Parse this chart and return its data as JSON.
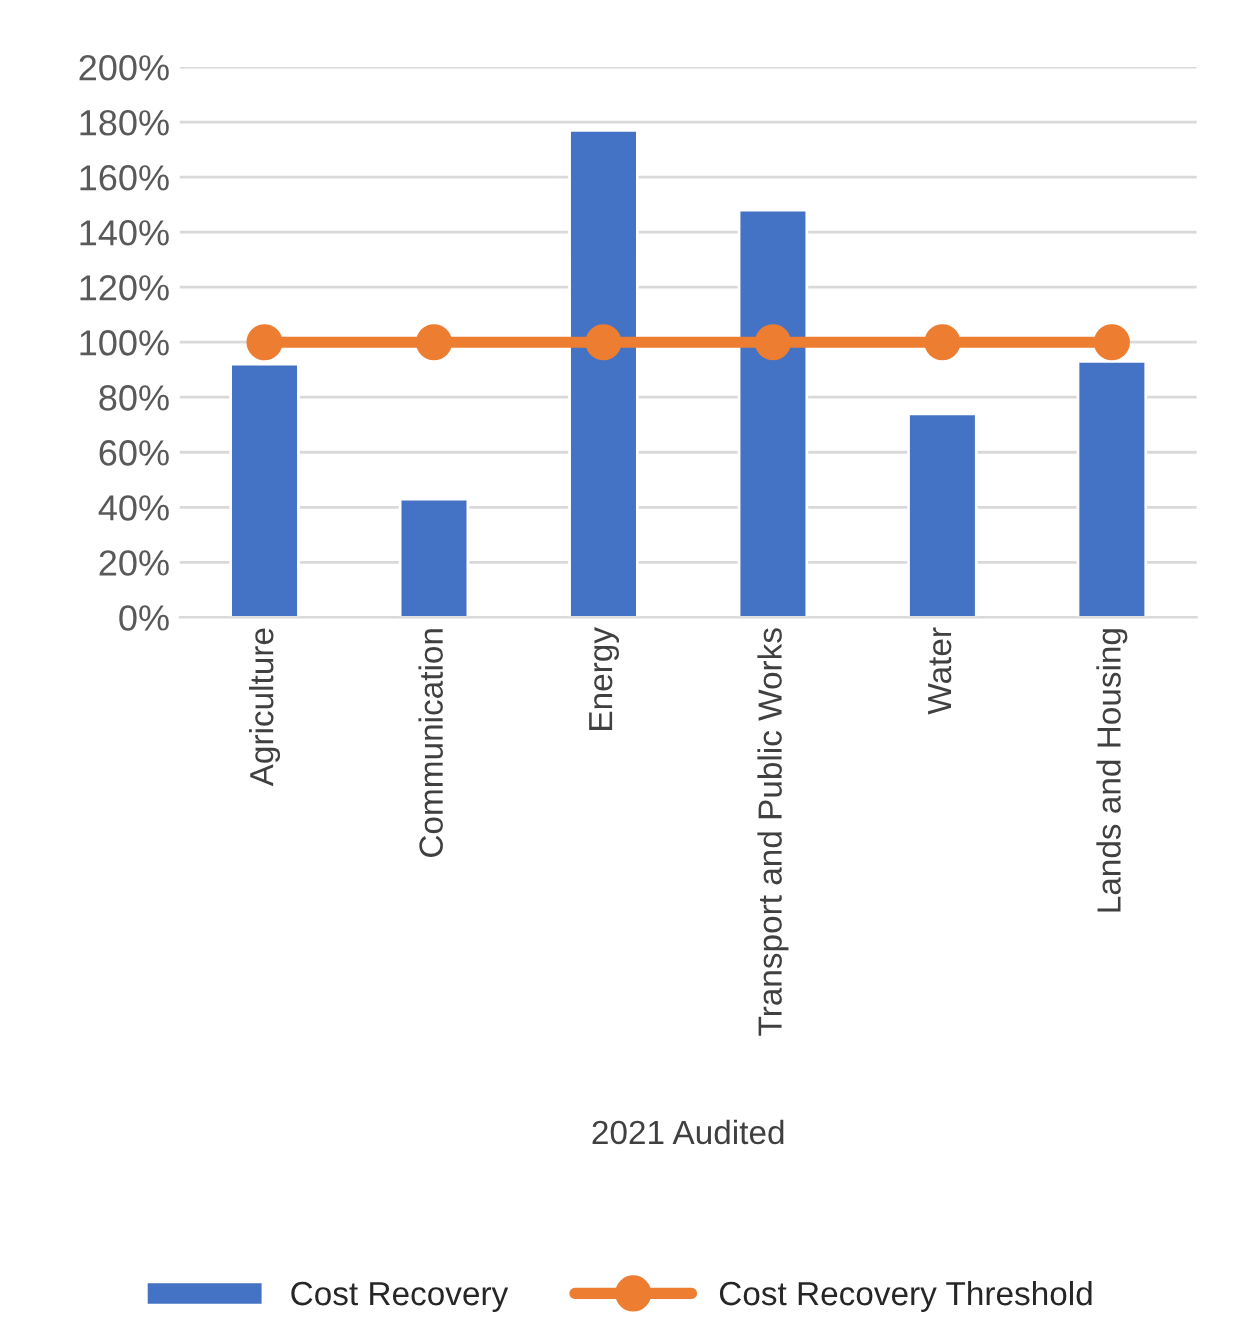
{
  "chart_data": {
    "type": "bar",
    "categories": [
      "Agriculture",
      "Communication",
      "Energy",
      "Transport and Public Works",
      "Water",
      "Lands and Housing"
    ],
    "xlabel": "2021 Audited",
    "series": [
      {
        "name": "Cost Recovery",
        "color": "#4472c4",
        "values": [
          92,
          43,
          177,
          148,
          74,
          93
        ]
      },
      {
        "name": "Cost Recovery Threshold",
        "color": "#ed7d31",
        "type": "line",
        "marker": "circle",
        "values": [
          100,
          100,
          100,
          100,
          100,
          100
        ]
      }
    ],
    "ylim": [
      0,
      200
    ],
    "yticks": [
      {
        "value": 0,
        "label": "0%"
      },
      {
        "value": 20,
        "label": "20%"
      },
      {
        "value": 40,
        "label": "40%"
      },
      {
        "value": 60,
        "label": "60%"
      },
      {
        "value": 80,
        "label": "80%"
      },
      {
        "value": 100,
        "label": "100%"
      },
      {
        "value": 120,
        "label": "120%"
      },
      {
        "value": 140,
        "label": "140%"
      },
      {
        "value": 160,
        "label": "160%"
      },
      {
        "value": 180,
        "label": "180%"
      },
      {
        "value": 200,
        "label": "200%"
      }
    ],
    "grid": "y",
    "legend": "bottom"
  }
}
